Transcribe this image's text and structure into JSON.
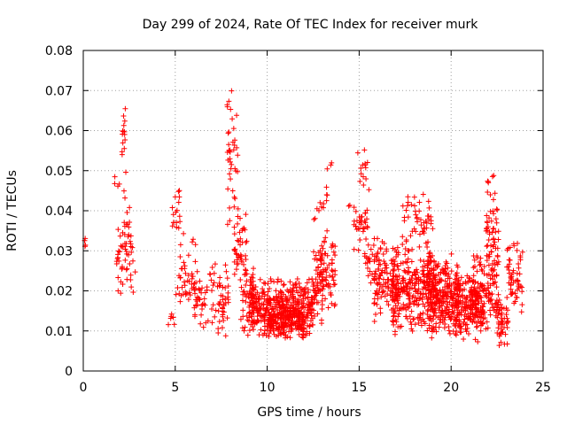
{
  "chart_data": {
    "type": "scatter",
    "title": "Day 299 of 2024, Rate Of TEC Index for receiver murk",
    "xlabel": "GPS time / hours",
    "ylabel": "ROTI / TECUs",
    "xlim": [
      0,
      25
    ],
    "ylim": [
      0,
      0.08
    ],
    "x_ticks": [
      "0",
      "5",
      "10",
      "15",
      "20",
      "25"
    ],
    "y_ticks": [
      "0",
      "0.01",
      "0.02",
      "0.03",
      "0.04",
      "0.05",
      "0.06",
      "0.07",
      "0.08"
    ],
    "grid": true,
    "marker": "plus",
    "color": "#ff0000",
    "clusters": [
      {
        "x_range": [
          0.05,
          0.15
        ],
        "y_range": [
          0.029,
          0.035
        ],
        "count": 4
      },
      {
        "x_range": [
          1.7,
          2.0
        ],
        "y_range": [
          0.043,
          0.053
        ],
        "count": 4
      },
      {
        "x_range": [
          1.8,
          2.2
        ],
        "y_range": [
          0.017,
          0.04
        ],
        "count": 22
      },
      {
        "x_range": [
          2.1,
          2.3
        ],
        "y_range": [
          0.052,
          0.066
        ],
        "count": 14
      },
      {
        "x_range": [
          2.2,
          2.6
        ],
        "y_range": [
          0.02,
          0.05
        ],
        "count": 26
      },
      {
        "x_range": [
          2.4,
          2.9
        ],
        "y_range": [
          0.015,
          0.04
        ],
        "count": 12
      },
      {
        "x_range": [
          4.6,
          5.0
        ],
        "y_range": [
          0.01,
          0.016
        ],
        "count": 6
      },
      {
        "x_range": [
          4.8,
          5.3
        ],
        "y_range": [
          0.03,
          0.047
        ],
        "count": 18
      },
      {
        "x_range": [
          5.0,
          6.2
        ],
        "y_range": [
          0.01,
          0.035
        ],
        "count": 45
      },
      {
        "x_range": [
          6.0,
          7.5
        ],
        "y_range": [
          0.007,
          0.028
        ],
        "count": 55
      },
      {
        "x_range": [
          7.3,
          7.9
        ],
        "y_range": [
          0.007,
          0.03
        ],
        "count": 30
      },
      {
        "x_range": [
          7.8,
          8.4
        ],
        "y_range": [
          0.033,
          0.073
        ],
        "count": 40
      },
      {
        "x_range": [
          8.2,
          8.9
        ],
        "y_range": [
          0.02,
          0.045
        ],
        "count": 45
      },
      {
        "x_range": [
          8.5,
          9.3
        ],
        "y_range": [
          0.008,
          0.03
        ],
        "count": 45
      },
      {
        "x_range": [
          9.0,
          12.5
        ],
        "y_range": [
          0.008,
          0.024
        ],
        "count": 420
      },
      {
        "x_range": [
          10.0,
          12.0
        ],
        "y_range": [
          0.008,
          0.016
        ],
        "count": 120
      },
      {
        "x_range": [
          12.4,
          13.0
        ],
        "y_range": [
          0.01,
          0.032
        ],
        "count": 55
      },
      {
        "x_range": [
          12.8,
          13.7
        ],
        "y_range": [
          0.014,
          0.036
        ],
        "count": 70
      },
      {
        "x_range": [
          12.5,
          13.3
        ],
        "y_range": [
          0.033,
          0.048
        ],
        "count": 12
      },
      {
        "x_range": [
          13.2,
          13.5
        ],
        "y_range": [
          0.048,
          0.056
        ],
        "count": 3
      },
      {
        "x_range": [
          14.3,
          14.6
        ],
        "y_range": [
          0.041,
          0.042
        ],
        "count": 2
      },
      {
        "x_range": [
          14.7,
          15.5
        ],
        "y_range": [
          0.03,
          0.043
        ],
        "count": 30
      },
      {
        "x_range": [
          14.9,
          15.6
        ],
        "y_range": [
          0.043,
          0.056
        ],
        "count": 14
      },
      {
        "x_range": [
          15.3,
          16.5
        ],
        "y_range": [
          0.02,
          0.035
        ],
        "count": 55
      },
      {
        "x_range": [
          15.8,
          17.0
        ],
        "y_range": [
          0.012,
          0.028
        ],
        "count": 70
      },
      {
        "x_range": [
          16.8,
          19.2
        ],
        "y_range": [
          0.008,
          0.032
        ],
        "count": 300
      },
      {
        "x_range": [
          17.3,
          19.0
        ],
        "y_range": [
          0.03,
          0.046
        ],
        "count": 50
      },
      {
        "x_range": [
          18.7,
          20.5
        ],
        "y_range": [
          0.008,
          0.03
        ],
        "count": 250
      },
      {
        "x_range": [
          20.2,
          21.8
        ],
        "y_range": [
          0.007,
          0.025
        ],
        "count": 180
      },
      {
        "x_range": [
          21.0,
          22.5
        ],
        "y_range": [
          0.01,
          0.03
        ],
        "count": 120
      },
      {
        "x_range": [
          21.9,
          22.6
        ],
        "y_range": [
          0.02,
          0.048
        ],
        "count": 55
      },
      {
        "x_range": [
          22.0,
          22.4
        ],
        "y_range": [
          0.044,
          0.05
        ],
        "count": 5
      },
      {
        "x_range": [
          22.5,
          23.1
        ],
        "y_range": [
          0.005,
          0.02
        ],
        "count": 45
      },
      {
        "x_range": [
          23.0,
          23.9
        ],
        "y_range": [
          0.012,
          0.035
        ],
        "count": 60
      }
    ]
  }
}
